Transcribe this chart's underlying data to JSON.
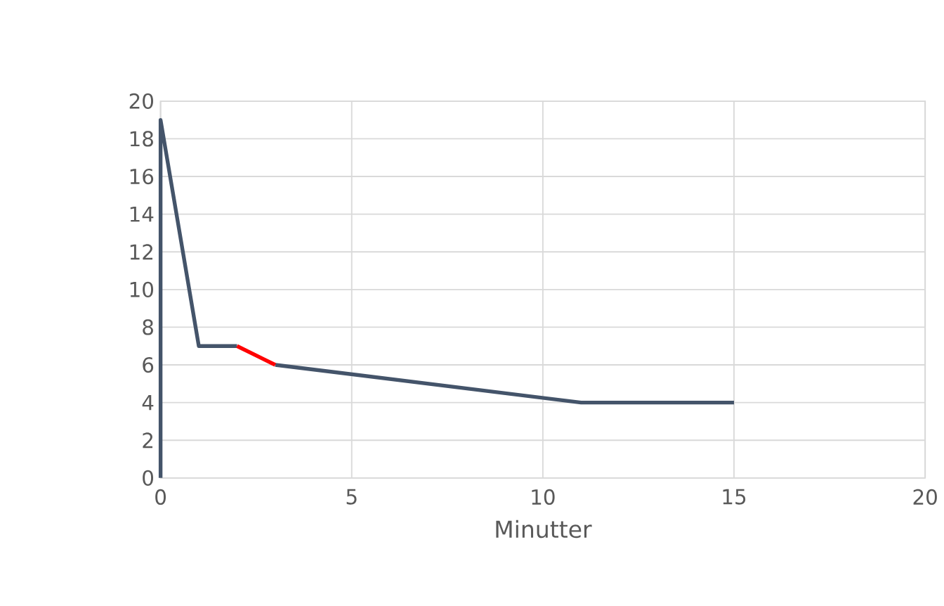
{
  "chart_data": {
    "type": "line",
    "xlabel": "Minutter",
    "series": [
      {
        "color": "#44546a",
        "x": [
          0,
          0,
          1,
          2
        ],
        "values": [
          0,
          19,
          7,
          7
        ]
      },
      {
        "color": "#44546a",
        "x": [
          3,
          11,
          15
        ],
        "values": [
          6,
          4,
          4
        ]
      },
      {
        "color": "#ff0000",
        "x": [
          2,
          3
        ],
        "values": [
          7,
          6
        ]
      }
    ],
    "xlim": [
      0,
      20
    ],
    "xticks": [
      0,
      5,
      10,
      15,
      20
    ],
    "ylim": [
      0,
      20
    ],
    "yticks": [
      0,
      2,
      4,
      6,
      8,
      10,
      12,
      14,
      16,
      18,
      20
    ],
    "grid": true,
    "legend": false,
    "marker": "none",
    "line_style": "solid"
  }
}
